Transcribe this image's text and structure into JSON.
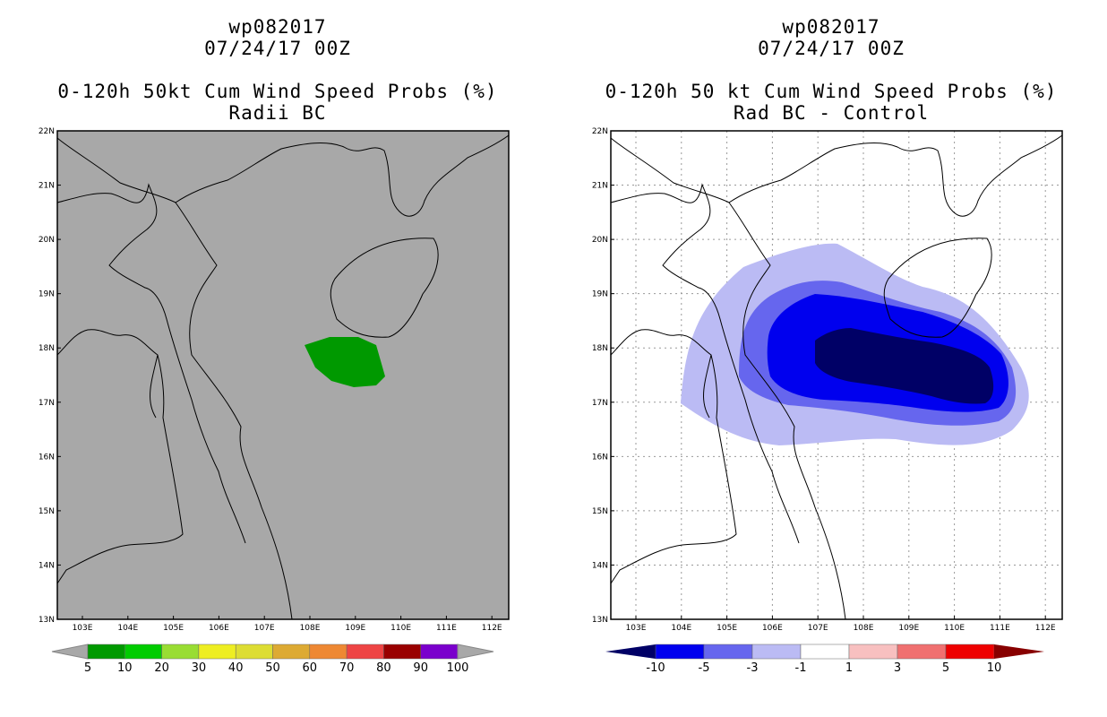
{
  "left": {
    "title_lines": [
      "wp082017",
      "07/24/17 00Z",
      "0-120h 50kt Cum Wind Speed Probs (%)",
      "Radii BC"
    ],
    "lat_labels": [
      "22N",
      "21N",
      "20N",
      "19N",
      "18N",
      "17N",
      "16N",
      "15N",
      "14N",
      "13N"
    ],
    "lon_labels": [
      "103E",
      "104E",
      "105E",
      "106E",
      "107E",
      "108E",
      "109E",
      "110E",
      "111E",
      "112E"
    ],
    "colorbar": {
      "labels": [
        "5",
        "10",
        "20",
        "30",
        "40",
        "50",
        "60",
        "70",
        "80",
        "90",
        "100"
      ],
      "colors": [
        "#009900",
        "#00cc00",
        "#99dd33",
        "#eeee22",
        "#dddd33",
        "#ddaa33",
        "#ee8833",
        "#ee4444",
        "#990000",
        "#7a00cc"
      ]
    }
  },
  "right": {
    "title_lines": [
      "wp082017",
      "07/24/17 00Z",
      "0-120h 50 kt Cum Wind Speed Probs (%)",
      "Rad BC - Control"
    ],
    "lat_labels": [
      "22N",
      "21N",
      "20N",
      "19N",
      "18N",
      "17N",
      "16N",
      "15N",
      "14N",
      "13N"
    ],
    "lon_labels": [
      "103E",
      "104E",
      "105E",
      "106E",
      "107E",
      "108E",
      "109E",
      "110E",
      "111E",
      "112E"
    ],
    "colorbar": {
      "labels": [
        "-10",
        "-5",
        "-3",
        "-1",
        "1",
        "3",
        "5",
        "10"
      ],
      "colors": [
        "#0000ee",
        "#6666ee",
        "#bbbbf4",
        "#ffffff",
        "#f8c0c0",
        "#f07070",
        "#ee0000"
      ],
      "end_left": "#000066",
      "end_right": "#880000"
    }
  }
}
